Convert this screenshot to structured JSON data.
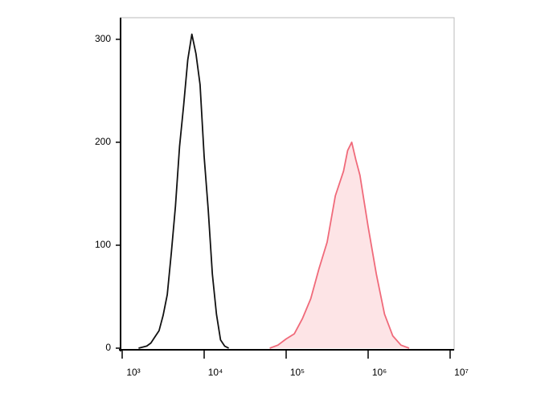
{
  "chart_data": {
    "type": "histogram-overlay",
    "log_x": true,
    "xlim": [
      1000,
      10000000
    ],
    "ylim": [
      0,
      321
    ],
    "xticks": [
      {
        "value": 1000,
        "label": "10³"
      },
      {
        "value": 10000,
        "label": "10⁴"
      },
      {
        "value": 100000,
        "label": "10⁵"
      },
      {
        "value": 1000000,
        "label": "10⁶"
      },
      {
        "value": 10000000,
        "label": "10⁷"
      }
    ],
    "yticks": [
      0,
      100,
      200,
      300
    ],
    "series": [
      {
        "color": "#111111",
        "fill": "none",
        "x": [
          1585,
          1995,
          2239,
          2512,
          2818,
          3162,
          3548,
          3981,
          4467,
          5012,
          5623,
          6310,
          7079,
          7943,
          8913,
          10000,
          11220,
          12589,
          14125,
          15849,
          17783,
          19953
        ],
        "values": [
          0,
          2,
          5,
          11,
          17,
          32,
          52,
          93,
          138,
          196,
          236,
          280,
          305,
          286,
          256,
          186,
          134,
          72,
          33,
          8,
          2,
          0
        ]
      },
      {
        "color": "#f06a7a",
        "fill": "#fde4e6",
        "x": [
          63096,
          79433,
          100000,
          125893,
          158489,
          199526,
          251189,
          316228,
          398107,
          501187,
          562341,
          630957,
          707946,
          794328,
          1000000,
          1258925,
          1584893,
          1995262,
          2511886,
          3162278
        ],
        "values": [
          0,
          3,
          9,
          14,
          29,
          48,
          77,
          103,
          148,
          172,
          192,
          200,
          183,
          168,
          118,
          72,
          33,
          12,
          3,
          0
        ]
      }
    ]
  }
}
